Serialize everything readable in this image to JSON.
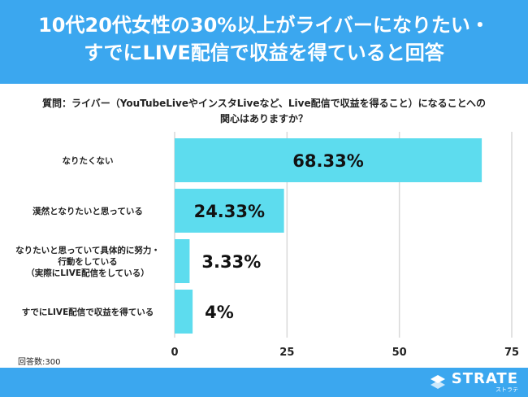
{
  "header": {
    "title_line1": "10代20代女性の30%以上がライバーになりたい・",
    "title_line2": "すでにLIVE配信で収益を得ていると回答"
  },
  "question": {
    "line1": "質問：ライバー（YouTubeLiveやインスタLiveなど、Live配信で収益を得ること）になることへの",
    "line2": "関心はありますか？"
  },
  "response_count": "回答数:300",
  "brand": {
    "name": "STRATE",
    "sub": "ストラテ"
  },
  "colors": {
    "header": "#3ba7ef",
    "bar": "#5ddcee",
    "grid": "#d9d9d9"
  },
  "chart_data": {
    "type": "bar",
    "orientation": "horizontal",
    "categories": [
      [
        "なりたくない"
      ],
      [
        "漠然となりたいと思っている"
      ],
      [
        "なりたいと思っていて具体的に努力・",
        "行動をしている",
        "（実際にLIVE配信をしている）"
      ],
      [
        "すでにLIVE配信で収益を得ている"
      ]
    ],
    "values": [
      68.33,
      24.33,
      3.33,
      4
    ],
    "value_labels": [
      "68.33%",
      "24.33%",
      "3.33%",
      "4%"
    ],
    "xlim": [
      0,
      75
    ],
    "xticks": [
      0,
      25,
      50,
      75
    ],
    "xtick_labels": [
      "0",
      "25",
      "50",
      "75"
    ],
    "grid": true
  }
}
